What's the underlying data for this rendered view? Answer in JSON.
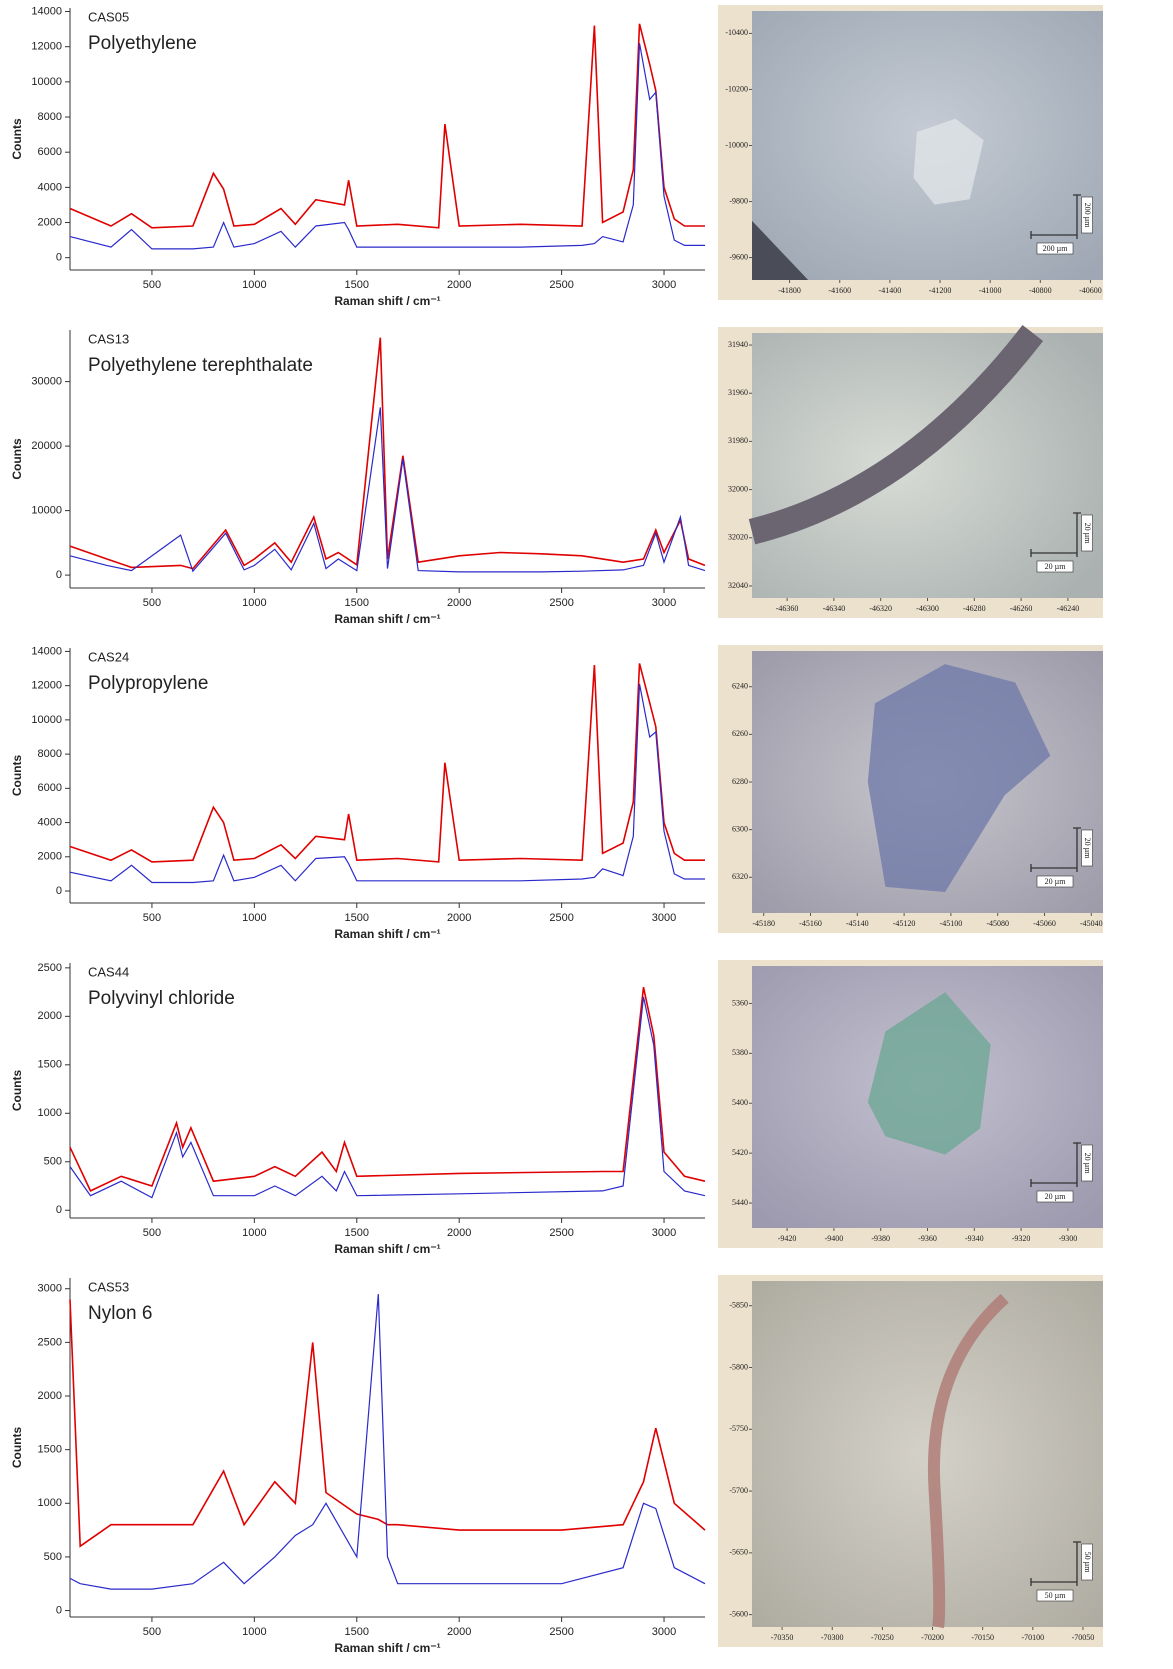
{
  "chart_data": [
    {
      "type": "line",
      "sample": "CAS05",
      "title": "Polyethylene",
      "x_label": "Raman shift / cm⁻¹",
      "y_label": "Counts",
      "xlim": [
        100,
        3200
      ],
      "xticks": [
        500,
        1000,
        1500,
        2000,
        2500,
        3000
      ],
      "ylim": [
        -700,
        14200
      ],
      "yticks": [
        0,
        2000,
        4000,
        6000,
        8000,
        10000,
        12000,
        14000
      ],
      "x": [
        100,
        300,
        400,
        500,
        700,
        800,
        850,
        900,
        1000,
        1130,
        1200,
        1300,
        1440,
        1460,
        1500,
        1700,
        1900,
        1930,
        2000,
        2300,
        2600,
        2660,
        2700,
        2800,
        2850,
        2880,
        2930,
        2960,
        3000,
        3050,
        3100,
        3200
      ],
      "series": [
        {
          "color": "#e00000",
          "values": [
            2800,
            1800,
            2500,
            1700,
            1800,
            4800,
            3900,
            1800,
            1900,
            2800,
            1900,
            3300,
            3000,
            4400,
            1800,
            1900,
            1700,
            7600,
            1800,
            1900,
            1800,
            13200,
            2000,
            2600,
            5000,
            13300,
            11000,
            9500,
            4000,
            2200,
            1800,
            1800
          ]
        },
        {
          "color": "#2a2acc",
          "values": [
            1200,
            600,
            1600,
            500,
            500,
            600,
            2000,
            600,
            800,
            1500,
            600,
            1800,
            2000,
            1600,
            600,
            600,
            600,
            600,
            600,
            600,
            700,
            800,
            1200,
            900,
            3000,
            12200,
            9000,
            9400,
            3500,
            1000,
            700,
            700
          ]
        }
      ]
    },
    {
      "type": "line",
      "sample": "CAS13",
      "title": "Polyethylene terephthalate",
      "x_label": "Raman shift / cm⁻¹",
      "y_label": "Counts",
      "xlim": [
        100,
        3200
      ],
      "xticks": [
        500,
        1000,
        1500,
        2000,
        2500,
        3000
      ],
      "ylim": [
        -2000,
        38000
      ],
      "yticks": [
        0,
        10000,
        20000,
        30000
      ],
      "x": [
        100,
        280,
        400,
        640,
        700,
        860,
        950,
        1000,
        1100,
        1180,
        1290,
        1350,
        1410,
        1500,
        1615,
        1650,
        1725,
        1800,
        2000,
        2200,
        2400,
        2600,
        2800,
        2900,
        2960,
        3000,
        3080,
        3120,
        3200
      ],
      "series": [
        {
          "color": "#e00000",
          "values": [
            4500,
            2500,
            1200,
            1500,
            1000,
            7000,
            1500,
            2500,
            5000,
            2000,
            9000,
            2500,
            3500,
            1600,
            36800,
            2500,
            18500,
            2000,
            3000,
            3500,
            3300,
            3000,
            2000,
            2500,
            7000,
            3500,
            8500,
            2500,
            1500
          ]
        },
        {
          "color": "#2a2acc",
          "values": [
            3000,
            1500,
            700,
            6200,
            600,
            6500,
            800,
            1500,
            4000,
            800,
            8000,
            1000,
            2500,
            700,
            26000,
            1000,
            18000,
            700,
            500,
            500,
            500,
            600,
            800,
            1500,
            6500,
            2000,
            9000,
            1500,
            700
          ]
        }
      ]
    },
    {
      "type": "line",
      "sample": "CAS24",
      "title": "Polypropylene",
      "x_label": "Raman shift / cm⁻¹",
      "y_label": "Counts",
      "xlim": [
        100,
        3200
      ],
      "xticks": [
        500,
        1000,
        1500,
        2000,
        2500,
        3000
      ],
      "ylim": [
        -700,
        14200
      ],
      "yticks": [
        0,
        2000,
        4000,
        6000,
        8000,
        10000,
        12000,
        14000
      ],
      "x": [
        100,
        300,
        400,
        500,
        700,
        800,
        850,
        900,
        1000,
        1130,
        1200,
        1300,
        1440,
        1460,
        1500,
        1700,
        1900,
        1930,
        2000,
        2300,
        2600,
        2660,
        2700,
        2800,
        2850,
        2880,
        2930,
        2960,
        3000,
        3050,
        3100,
        3200
      ],
      "series": [
        {
          "color": "#e00000",
          "values": [
            2600,
            1800,
            2400,
            1700,
            1800,
            4900,
            4000,
            1800,
            1900,
            2700,
            1900,
            3200,
            3000,
            4500,
            1800,
            1900,
            1700,
            7500,
            1800,
            1900,
            1800,
            13200,
            2200,
            2800,
            5200,
            13300,
            11000,
            9600,
            4000,
            2200,
            1800,
            1800
          ]
        },
        {
          "color": "#2a2acc",
          "values": [
            1100,
            600,
            1500,
            500,
            500,
            600,
            2100,
            600,
            800,
            1500,
            600,
            1900,
            2000,
            1600,
            600,
            600,
            600,
            600,
            600,
            600,
            700,
            800,
            1300,
            900,
            3200,
            12100,
            9000,
            9300,
            3500,
            1000,
            700,
            700
          ]
        }
      ]
    },
    {
      "type": "line",
      "sample": "CAS44",
      "title": "Polyvinyl chloride",
      "x_label": "Raman shift / cm⁻¹",
      "y_label": "Counts",
      "xlim": [
        100,
        3200
      ],
      "xticks": [
        500,
        1000,
        1500,
        2000,
        2500,
        3000
      ],
      "ylim": [
        -80,
        2550
      ],
      "yticks": [
        0,
        500,
        1000,
        1500,
        2000,
        2500
      ],
      "x": [
        100,
        200,
        350,
        500,
        620,
        650,
        690,
        800,
        1000,
        1100,
        1200,
        1330,
        1400,
        1440,
        1500,
        2000,
        2700,
        2800,
        2900,
        2950,
        3000,
        3100,
        3200
      ],
      "series": [
        {
          "color": "#e00000",
          "values": [
            650,
            200,
            350,
            250,
            900,
            650,
            850,
            300,
            350,
            450,
            350,
            600,
            400,
            700,
            350,
            380,
            400,
            400,
            2300,
            1800,
            600,
            350,
            300
          ]
        },
        {
          "color": "#2a2acc",
          "values": [
            450,
            150,
            300,
            130,
            800,
            550,
            700,
            150,
            150,
            250,
            150,
            350,
            200,
            400,
            150,
            170,
            200,
            250,
            2200,
            1700,
            400,
            200,
            150
          ]
        }
      ]
    },
    {
      "type": "line",
      "sample": "CAS53",
      "title": "Nylon 6",
      "x_label": "Raman shift / cm⁻¹",
      "y_label": "Counts",
      "xlim": [
        100,
        3200
      ],
      "xticks": [
        500,
        1000,
        1500,
        2000,
        2500,
        3000
      ],
      "ylim": [
        -60,
        3100
      ],
      "yticks": [
        0,
        500,
        1000,
        1500,
        2000,
        2500,
        3000
      ],
      "x": [
        100,
        150,
        300,
        500,
        700,
        850,
        950,
        1100,
        1200,
        1285,
        1350,
        1500,
        1605,
        1650,
        1700,
        2000,
        2500,
        2800,
        2900,
        2960,
        3050,
        3200
      ],
      "series": [
        {
          "color": "#e00000",
          "values": [
            2900,
            600,
            800,
            800,
            800,
            1300,
            800,
            1200,
            1000,
            2500,
            1100,
            900,
            850,
            800,
            800,
            750,
            750,
            800,
            1200,
            1700,
            1000,
            750
          ]
        },
        {
          "color": "#2a2acc",
          "values": [
            300,
            250,
            200,
            200,
            250,
            450,
            250,
            500,
            700,
            800,
            1000,
            500,
            2950,
            500,
            250,
            250,
            250,
            400,
            1000,
            950,
            400,
            250
          ]
        }
      ]
    },
    {
      "type": "image",
      "scale_bar": "200 µm",
      "xlim": [
        -41950,
        -40550
      ],
      "xticks": [
        -41800,
        -41600,
        -41400,
        -41200,
        -41000,
        -40800,
        -40600
      ],
      "ylim": [
        -10480,
        -9520
      ],
      "yticks": [
        -10400,
        -10200,
        -10000,
        -9800,
        -9600
      ]
    },
    {
      "type": "image",
      "scale_bar": "20 µm",
      "xlim": [
        -46375,
        -46225
      ],
      "xticks": [
        -46360,
        -46340,
        -46320,
        -46300,
        -46280,
        -46260,
        -46240
      ],
      "ylim": [
        31935,
        32045
      ],
      "yticks": [
        31940,
        31960,
        31980,
        32000,
        32020,
        32040
      ]
    },
    {
      "type": "image",
      "scale_bar": "20 µm",
      "xlim": [
        -45185,
        -45035
      ],
      "xticks": [
        -45180,
        -45160,
        -45140,
        -45120,
        -45100,
        -45080,
        -45060,
        -45040
      ],
      "ylim": [
        6225,
        6335
      ],
      "yticks": [
        6240,
        6260,
        6280,
        6300,
        6320
      ]
    },
    {
      "type": "image",
      "scale_bar": "20 µm",
      "xlim": [
        -9435,
        -9285
      ],
      "xticks": [
        -9420,
        -9400,
        -9380,
        -9360,
        -9340,
        -9320,
        -9300
      ],
      "ylim": [
        5345,
        5450
      ],
      "yticks": [
        5360,
        5380,
        5400,
        5420,
        5440
      ]
    },
    {
      "type": "image",
      "scale_bar": "50 µm",
      "xlim": [
        -70380,
        -70030
      ],
      "xticks": [
        -70350,
        -70300,
        -70250,
        -70200,
        -70150,
        -70100,
        -70050
      ],
      "ylim": [
        -5870,
        -5590
      ],
      "yticks": [
        -5850,
        -5800,
        -5750,
        -5700,
        -5650,
        -5600
      ]
    }
  ]
}
